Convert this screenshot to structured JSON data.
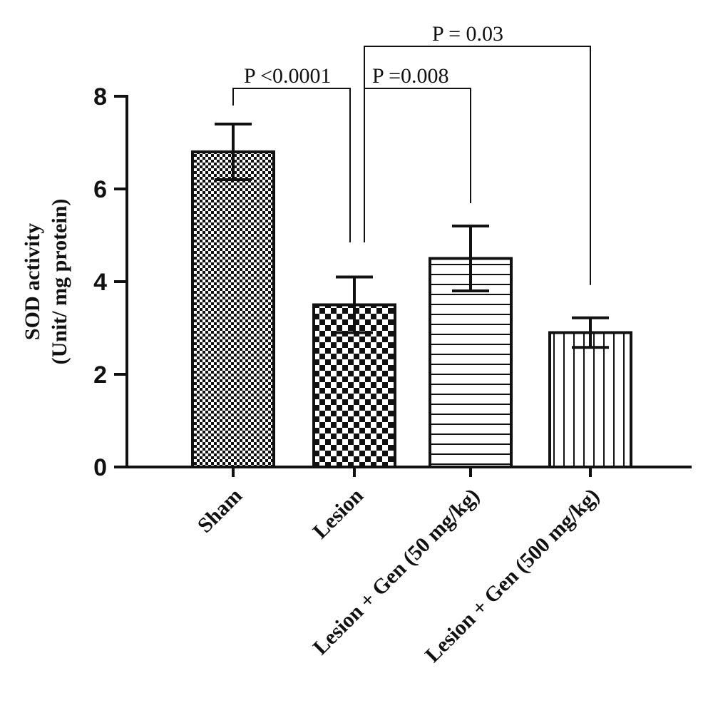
{
  "chart_data": {
    "type": "bar",
    "ylabel_line1": "SOD activity",
    "ylabel_line2": "(Unit/ mg protein)",
    "xlabel": "",
    "ylim": [
      0,
      8
    ],
    "yticks": [
      0,
      2,
      4,
      6,
      8
    ],
    "categories": [
      "Sham",
      "Lesion",
      "Lesion + Gen (50 mg/kg)",
      "Lesion + Gen (500 mg/kg)"
    ],
    "values": [
      6.8,
      3.5,
      4.5,
      2.9
    ],
    "errors": [
      0.6,
      0.6,
      0.7,
      0.32
    ],
    "patterns": [
      "fine-checker",
      "coarse-checker",
      "horizontal-lines",
      "vertical-lines"
    ],
    "comparisons": [
      {
        "from": 0,
        "to": 1,
        "label": "P <0.0001"
      },
      {
        "from": 1,
        "to": 2,
        "label": "P =0.008"
      },
      {
        "from": 1,
        "to": 3,
        "label": "P = 0.03"
      }
    ],
    "grid": false,
    "colors": {
      "stroke": "#111111",
      "fill": "#ffffff"
    }
  }
}
